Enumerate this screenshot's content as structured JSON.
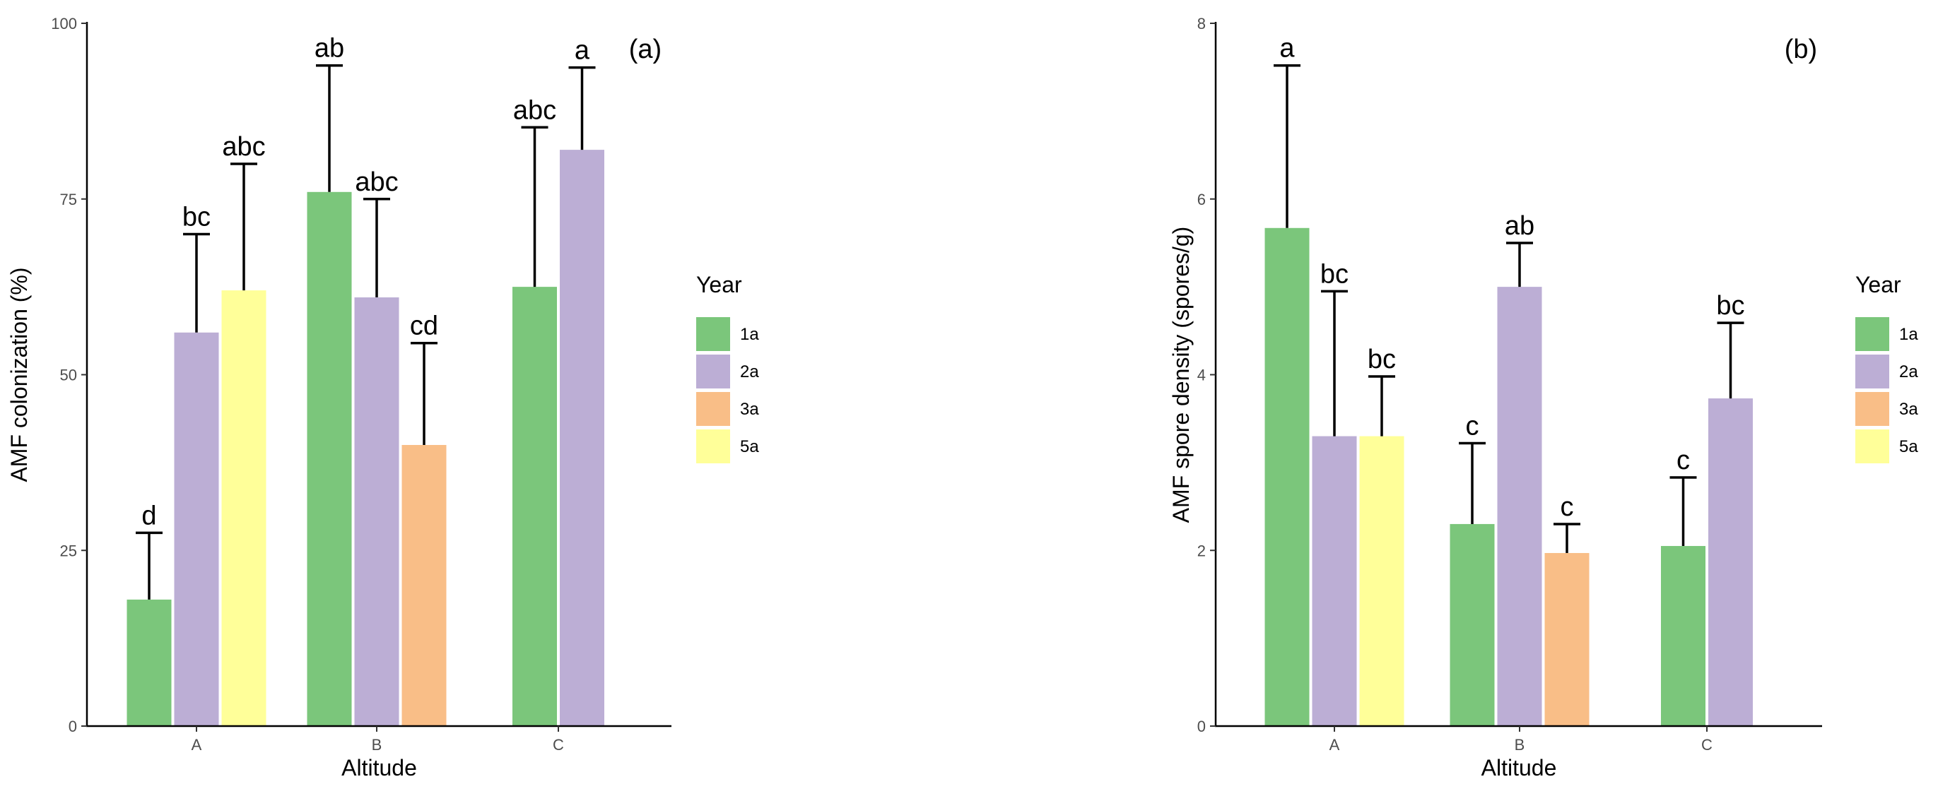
{
  "colors": {
    "1a": "#7bc67b",
    "2a": "#bcaed5",
    "3a": "#f9be87",
    "5a": "#ffff99"
  },
  "chart_data": [
    {
      "type": "bar",
      "panel_label": "(a)",
      "xlabel": "Altitude",
      "ylabel": "AMF colonization (%)",
      "categories": [
        "A",
        "B",
        "C"
      ],
      "ylim": [
        0,
        100
      ],
      "yticks": [
        0,
        25,
        50,
        75,
        100
      ],
      "legend": {
        "title": "Year",
        "entries": [
          "1a",
          "2a",
          "3a",
          "5a"
        ]
      },
      "bars": [
        {
          "category": "A",
          "year": "1a",
          "value": 18,
          "error": 9.5,
          "letter": "d"
        },
        {
          "category": "A",
          "year": "2a",
          "value": 56,
          "error": 14,
          "letter": "bc"
        },
        {
          "category": "A",
          "year": "5a",
          "value": 62,
          "error": 18,
          "letter": "abc"
        },
        {
          "category": "B",
          "year": "1a",
          "value": 76,
          "error": 18,
          "letter": "ab"
        },
        {
          "category": "B",
          "year": "2a",
          "value": 61,
          "error": 14,
          "letter": "abc"
        },
        {
          "category": "B",
          "year": "3a",
          "value": 40,
          "error": 14.5,
          "letter": "cd"
        },
        {
          "category": "C",
          "year": "1a",
          "value": 62.5,
          "error": 22.7,
          "letter": "abc"
        },
        {
          "category": "C",
          "year": "2a",
          "value": 82,
          "error": 11.7,
          "letter": "a"
        }
      ]
    },
    {
      "type": "bar",
      "panel_label": "(b)",
      "xlabel": "Altitude",
      "ylabel": "AMF spore density (spores/g)",
      "categories": [
        "A",
        "B",
        "C"
      ],
      "ylim": [
        0,
        8
      ],
      "yticks": [
        0,
        2,
        4,
        6,
        8
      ],
      "legend": {
        "title": "Year",
        "entries": [
          "1a",
          "2a",
          "3a",
          "5a"
        ]
      },
      "bars": [
        {
          "category": "A",
          "year": "1a",
          "value": 5.67,
          "error": 1.85,
          "letter": "a"
        },
        {
          "category": "A",
          "year": "2a",
          "value": 3.3,
          "error": 1.65,
          "letter": "bc"
        },
        {
          "category": "A",
          "year": "5a",
          "value": 3.3,
          "error": 0.68,
          "letter": "bc"
        },
        {
          "category": "B",
          "year": "1a",
          "value": 2.3,
          "error": 0.92,
          "letter": "c"
        },
        {
          "category": "B",
          "year": "2a",
          "value": 5.0,
          "error": 0.5,
          "letter": "ab"
        },
        {
          "category": "B",
          "year": "3a",
          "value": 1.97,
          "error": 0.33,
          "letter": "c"
        },
        {
          "category": "C",
          "year": "1a",
          "value": 2.05,
          "error": 0.78,
          "letter": "c"
        },
        {
          "category": "C",
          "year": "2a",
          "value": 3.73,
          "error": 0.86,
          "letter": "bc"
        }
      ]
    }
  ]
}
